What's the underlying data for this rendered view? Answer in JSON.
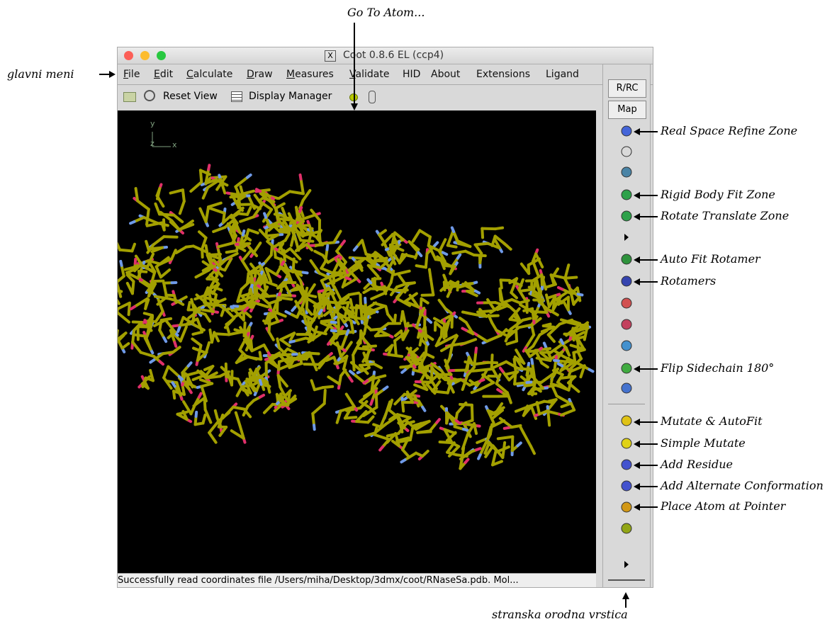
{
  "window": {
    "title": "Coot 0.8.6 EL (ccp4)",
    "menu": [
      "File",
      "Edit",
      "Calculate",
      "Draw",
      "Measures",
      "Validate",
      "HID",
      "About",
      "Extensions",
      "Ligand"
    ],
    "toolbar": [
      "Reset View",
      "Display Manager"
    ],
    "axes": [
      "y",
      "z",
      "x"
    ],
    "sidebar": [
      "R/RC",
      "Map"
    ],
    "status": "Successfully read coordinates file /Users/miha/Desktop/3dmx/coot/RNaseSa.pdb.  Mol..."
  },
  "annotations": {
    "main_menu": "glavni meni",
    "go_to_atom": "Go To Atom...",
    "side_toolbar": "stranska orodna vrstica",
    "tools": [
      "Real Space Refine Zone",
      "Rigid Body Fit Zone",
      "Rotate Translate Zone",
      "Auto Fit Rotamer",
      "Rotamers",
      "Flip Sidechain 180°",
      "Mutate & AutoFit",
      "Simple Mutate",
      "Add Residue",
      "Add Alternate Conformation",
      "Place Atom at Pointer"
    ]
  }
}
